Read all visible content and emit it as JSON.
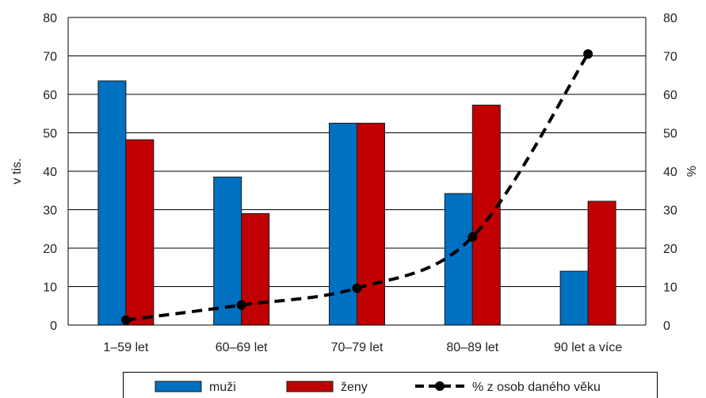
{
  "chart_data": {
    "type": "bar",
    "categories": [
      "1–59 let",
      "60–69 let",
      "70–79 let",
      "80–89 let",
      "90 let a více"
    ],
    "series": [
      {
        "name": "muži",
        "type": "bar",
        "axis": "left",
        "color": "#0070C0",
        "values": [
          63.5,
          38.5,
          52.5,
          34.2,
          14.0
        ]
      },
      {
        "name": "ženy",
        "type": "bar",
        "axis": "left",
        "color": "#C00000",
        "values": [
          48.2,
          29.0,
          52.5,
          57.2,
          32.2
        ]
      },
      {
        "name": "% z osob daného věku",
        "type": "line",
        "axis": "right",
        "color": "#000000",
        "style": "dashed",
        "marker": "circle",
        "values": [
          1.3,
          5.2,
          9.6,
          22.9,
          70.5
        ]
      }
    ],
    "ylabel": "v tis.",
    "y2label": "%",
    "ylim": [
      0,
      80
    ],
    "y2lim": [
      0,
      80
    ],
    "yticks": [
      0,
      10,
      20,
      30,
      40,
      50,
      60,
      70,
      80
    ],
    "y2ticks": [
      0,
      10,
      20,
      30,
      40,
      50,
      60,
      70,
      80
    ],
    "grid": true,
    "legend": "bottom"
  }
}
